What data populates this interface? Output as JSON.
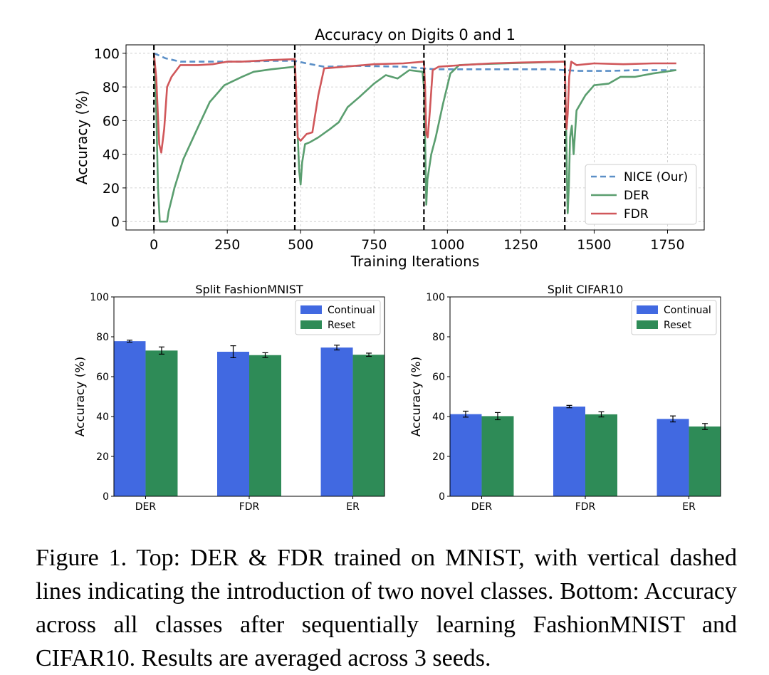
{
  "chart_data": [
    {
      "type": "line",
      "title": "Accuracy on Digits 0 and 1",
      "xlabel": "Training Iterations",
      "ylabel": "Accuracy (%)",
      "xlim": [
        -95,
        1875
      ],
      "ylim": [
        -5,
        105
      ],
      "xticks": [
        0,
        250,
        500,
        750,
        1000,
        1250,
        1500,
        1750
      ],
      "yticks": [
        0,
        20,
        40,
        60,
        80,
        100
      ],
      "grid": true,
      "legend_position": "lower-right",
      "task_boundaries": [
        0,
        480,
        920,
        1400
      ],
      "series": [
        {
          "name": "NICE (Our)",
          "color": "#5b8fc7",
          "style": "dashed",
          "points": [
            [
              0,
              100
            ],
            [
              40,
              97
            ],
            [
              90,
              95
            ],
            [
              200,
              95
            ],
            [
              300,
              95
            ],
            [
              400,
              95.5
            ],
            [
              480,
              95.5
            ],
            [
              520,
              94
            ],
            [
              580,
              92
            ],
            [
              700,
              92.5
            ],
            [
              850,
              92
            ],
            [
              920,
              91
            ],
            [
              960,
              90.5
            ],
            [
              1050,
              90.5
            ],
            [
              1200,
              90.5
            ],
            [
              1350,
              90.5
            ],
            [
              1400,
              90
            ],
            [
              1450,
              89.5
            ],
            [
              1550,
              89.5
            ],
            [
              1650,
              90
            ],
            [
              1780,
              90
            ]
          ]
        },
        {
          "name": "DER",
          "color": "#5a9e6f",
          "style": "solid",
          "points": [
            [
              0,
              100
            ],
            [
              8,
              65
            ],
            [
              14,
              20
            ],
            [
              20,
              0
            ],
            [
              35,
              0
            ],
            [
              45,
              0
            ],
            [
              50,
              6
            ],
            [
              70,
              20
            ],
            [
              100,
              37
            ],
            [
              150,
              56
            ],
            [
              190,
              71
            ],
            [
              240,
              81
            ],
            [
              300,
              86
            ],
            [
              340,
              89
            ],
            [
              400,
              90.5
            ],
            [
              480,
              92
            ],
            [
              488,
              60
            ],
            [
              495,
              30
            ],
            [
              500,
              22
            ],
            [
              505,
              35
            ],
            [
              515,
              46
            ],
            [
              530,
              47
            ],
            [
              560,
              50
            ],
            [
              600,
              55
            ],
            [
              630,
              59
            ],
            [
              660,
              68
            ],
            [
              700,
              74
            ],
            [
              750,
              82
            ],
            [
              790,
              87
            ],
            [
              830,
              85
            ],
            [
              870,
              90
            ],
            [
              915,
              89
            ],
            [
              920,
              80
            ],
            [
              925,
              40
            ],
            [
              928,
              10
            ],
            [
              932,
              25
            ],
            [
              945,
              40
            ],
            [
              960,
              50
            ],
            [
              985,
              70
            ],
            [
              1010,
              88
            ],
            [
              1040,
              93
            ],
            [
              1100,
              93.5
            ],
            [
              1200,
              94
            ],
            [
              1300,
              94.5
            ],
            [
              1400,
              95
            ],
            [
              1404,
              60
            ],
            [
              1408,
              20
            ],
            [
              1410,
              5
            ],
            [
              1414,
              22
            ],
            [
              1418,
              50
            ],
            [
              1424,
              57
            ],
            [
              1430,
              40
            ],
            [
              1440,
              66
            ],
            [
              1470,
              75
            ],
            [
              1500,
              81
            ],
            [
              1550,
              82
            ],
            [
              1590,
              86
            ],
            [
              1640,
              86
            ],
            [
              1700,
              88
            ],
            [
              1780,
              90
            ]
          ]
        },
        {
          "name": "FDR",
          "color": "#d0575a",
          "style": "solid",
          "points": [
            [
              0,
              100
            ],
            [
              8,
              85
            ],
            [
              18,
              46
            ],
            [
              25,
              41
            ],
            [
              35,
              55
            ],
            [
              45,
              80
            ],
            [
              60,
              86
            ],
            [
              90,
              93
            ],
            [
              150,
              93
            ],
            [
              200,
              93.5
            ],
            [
              250,
              95
            ],
            [
              300,
              95
            ],
            [
              400,
              96
            ],
            [
              480,
              96.5
            ],
            [
              484,
              80
            ],
            [
              490,
              50
            ],
            [
              500,
              48
            ],
            [
              520,
              52
            ],
            [
              540,
              53
            ],
            [
              560,
              75
            ],
            [
              580,
              91
            ],
            [
              650,
              92
            ],
            [
              750,
              93.5
            ],
            [
              850,
              94
            ],
            [
              920,
              95
            ],
            [
              924,
              80
            ],
            [
              928,
              52
            ],
            [
              933,
              50
            ],
            [
              940,
              65
            ],
            [
              950,
              90
            ],
            [
              970,
              92
            ],
            [
              1050,
              93
            ],
            [
              1150,
              94
            ],
            [
              1250,
              94.5
            ],
            [
              1400,
              95
            ],
            [
              1403,
              70
            ],
            [
              1406,
              55
            ],
            [
              1410,
              64
            ],
            [
              1415,
              86
            ],
            [
              1422,
              95
            ],
            [
              1440,
              93
            ],
            [
              1500,
              94
            ],
            [
              1600,
              93.5
            ],
            [
              1700,
              94
            ],
            [
              1780,
              94
            ]
          ]
        }
      ]
    },
    {
      "type": "bar",
      "title": "Split FashionMNIST",
      "ylabel": "Accuracy (%)",
      "ylim": [
        0,
        100
      ],
      "yticks": [
        0,
        20,
        40,
        60,
        80,
        100
      ],
      "categories": [
        "DER",
        "FDR",
        "ER"
      ],
      "legend_position": "top-right",
      "series": [
        {
          "name": "Continual",
          "color": "#4169e1",
          "values": [
            77.8,
            72.5,
            74.6
          ],
          "errors": [
            0.5,
            3.0,
            1.2
          ]
        },
        {
          "name": "Reset",
          "color": "#2e8b57",
          "values": [
            73.1,
            70.8,
            71.0
          ],
          "errors": [
            1.8,
            1.2,
            0.8
          ]
        }
      ]
    },
    {
      "type": "bar",
      "title": "Split CIFAR10",
      "ylabel": "Accuracy (%)",
      "ylim": [
        0,
        100
      ],
      "yticks": [
        0,
        20,
        40,
        60,
        80,
        100
      ],
      "categories": [
        "DER",
        "FDR",
        "ER"
      ],
      "legend_position": "top-right",
      "series": [
        {
          "name": "Continual",
          "color": "#4169e1",
          "values": [
            41.2,
            45.0,
            38.8
          ],
          "errors": [
            1.5,
            0.6,
            1.5
          ]
        },
        {
          "name": "Reset",
          "color": "#2e8b57",
          "values": [
            40.2,
            41.1,
            35.0
          ],
          "errors": [
            1.8,
            1.3,
            1.5
          ]
        }
      ]
    }
  ],
  "caption": "Figure 1.  Top: DER & FDR trained on MNIST, with vertical dashed lines indicating the introduction of two novel classes. Bottom: Accuracy across all classes after sequentially learning FashionMNIST and CIFAR10. Results are averaged across 3 seeds."
}
